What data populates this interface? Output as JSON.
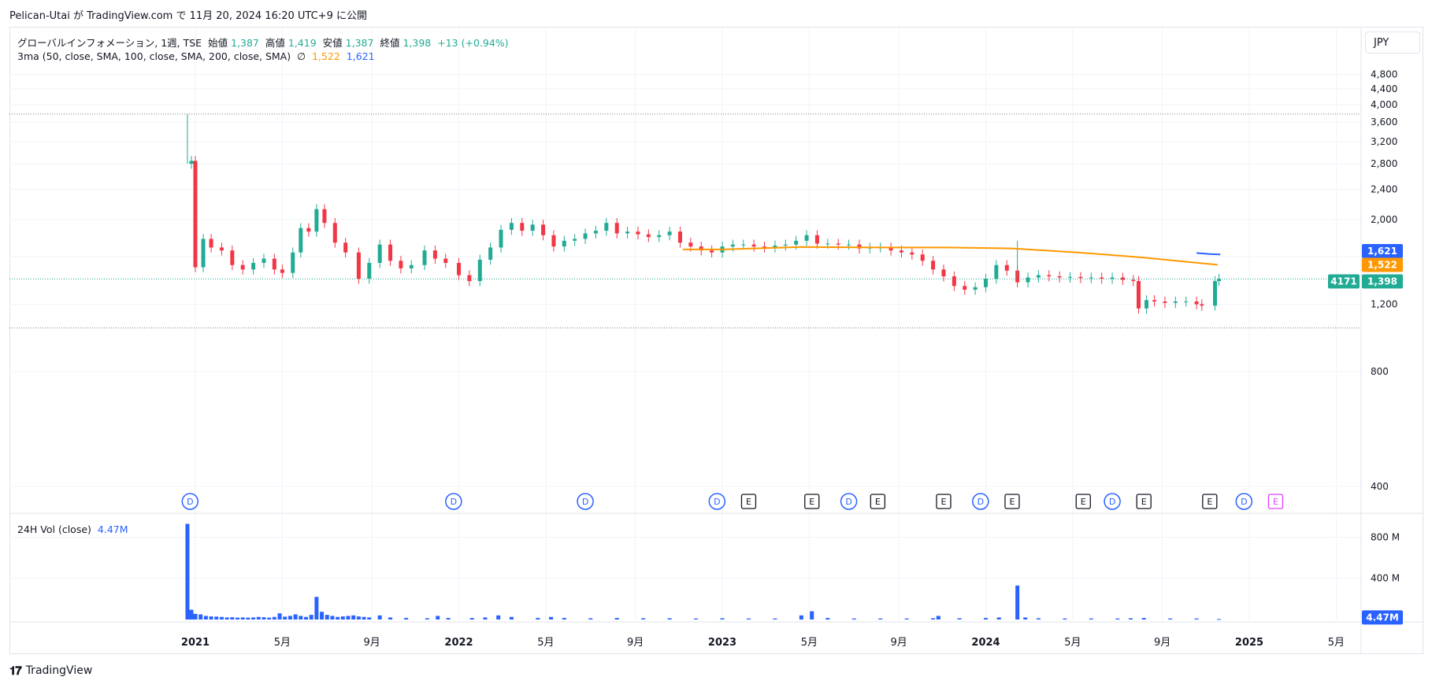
{
  "header": {
    "published": "Pelican-Utai が TradingView.com で 11月 20, 2024 16:20 UTC+9 に公開"
  },
  "legend": {
    "symbol": "グローバルインフォメーション, 1週, TSE",
    "open_label": "始値",
    "open": "1,387",
    "high_label": "高値",
    "high": "1,419",
    "low_label": "安値",
    "low": "1,387",
    "close_label": "終値",
    "close": "1,398",
    "change": "+13 (+0.94%)",
    "ma_label": "3ma (50, close, SMA, 100, close, SMA, 200, close, SMA)",
    "ma_na": "∅",
    "ma100": "1,522",
    "ma200": "1,621",
    "vol_label": "24H Vol (close)",
    "vol_value": "4.47M"
  },
  "currency": "JPY",
  "footer": {
    "brand": "TradingView"
  },
  "colors": {
    "up": "#22ab94",
    "down": "#f23645",
    "ma100": "#ff9800",
    "ma200": "#2962ff",
    "volume": "#2962ff",
    "ticker_bg": "#22ab94"
  },
  "chart_data": [
    {
      "type": "candlestick",
      "title": "グローバルインフォメーション, 1週, TSE",
      "timeframe": "1週",
      "price_axis": {
        "ticks": [
          400,
          800,
          1200,
          1600,
          2000,
          2400,
          2800,
          3200,
          3600,
          4000,
          4400,
          4800
        ],
        "tick_labels": [
          "400",
          "800",
          "1,200",
          "1,600",
          "2,000",
          "2,400",
          "2,800",
          "3,200",
          "3,600",
          "4,000",
          "4,400",
          "4,800"
        ],
        "ylim": [
          360,
          5000
        ]
      },
      "time_axis": {
        "labels": [
          {
            "text": "2021",
            "t": 2021.0,
            "bold": true
          },
          {
            "text": "5月",
            "t": 2021.33
          },
          {
            "text": "9月",
            "t": 2021.67
          },
          {
            "text": "2022",
            "t": 2022.0,
            "bold": true
          },
          {
            "text": "5月",
            "t": 2022.33
          },
          {
            "text": "9月",
            "t": 2022.67
          },
          {
            "text": "2023",
            "t": 2023.0,
            "bold": true
          },
          {
            "text": "5月",
            "t": 2023.33
          },
          {
            "text": "9月",
            "t": 2023.67
          },
          {
            "text": "2024",
            "t": 2024.0,
            "bold": true
          },
          {
            "text": "5月",
            "t": 2024.33
          },
          {
            "text": "9月",
            "t": 2024.67
          },
          {
            "text": "2025",
            "t": 2025.0,
            "bold": true
          },
          {
            "text": "5月",
            "t": 2025.33
          }
        ]
      },
      "reference_lines": [
        3780,
        1040,
        1398
      ],
      "last_price": {
        "ticker": "4171",
        "value": "1,398"
      },
      "ma_labels": [
        {
          "value": "1,621",
          "series": "ma200"
        },
        {
          "value": "1,522",
          "series": "ma100"
        }
      ],
      "price_path": [
        [
          2020.97,
          2800
        ],
        [
          2020.985,
          2850
        ],
        [
          2021.0,
          1500
        ],
        [
          2021.03,
          1780
        ],
        [
          2021.06,
          1690
        ],
        [
          2021.1,
          1660
        ],
        [
          2021.14,
          1520
        ],
        [
          2021.18,
          1480
        ],
        [
          2021.22,
          1540
        ],
        [
          2021.26,
          1580
        ],
        [
          2021.3,
          1480
        ],
        [
          2021.33,
          1450
        ],
        [
          2021.37,
          1640
        ],
        [
          2021.4,
          1900
        ],
        [
          2021.43,
          1860
        ],
        [
          2021.46,
          2130
        ],
        [
          2021.49,
          1960
        ],
        [
          2021.53,
          1740
        ],
        [
          2021.57,
          1640
        ],
        [
          2021.62,
          1400
        ],
        [
          2021.66,
          1540
        ],
        [
          2021.7,
          1720
        ],
        [
          2021.74,
          1560
        ],
        [
          2021.78,
          1490
        ],
        [
          2021.82,
          1520
        ],
        [
          2021.87,
          1660
        ],
        [
          2021.91,
          1580
        ],
        [
          2021.95,
          1540
        ],
        [
          2022.0,
          1430
        ],
        [
          2022.04,
          1380
        ],
        [
          2022.08,
          1570
        ],
        [
          2022.12,
          1690
        ],
        [
          2022.16,
          1880
        ],
        [
          2022.2,
          1960
        ],
        [
          2022.24,
          1870
        ],
        [
          2022.28,
          1940
        ],
        [
          2022.32,
          1820
        ],
        [
          2022.36,
          1700
        ],
        [
          2022.4,
          1760
        ],
        [
          2022.44,
          1780
        ],
        [
          2022.48,
          1840
        ],
        [
          2022.52,
          1870
        ],
        [
          2022.56,
          1960
        ],
        [
          2022.6,
          1840
        ],
        [
          2022.64,
          1860
        ],
        [
          2022.68,
          1830
        ],
        [
          2022.72,
          1800
        ],
        [
          2022.76,
          1820
        ],
        [
          2022.8,
          1860
        ],
        [
          2022.84,
          1740
        ],
        [
          2022.88,
          1700
        ],
        [
          2022.92,
          1660
        ],
        [
          2022.96,
          1640
        ],
        [
          2023.0,
          1700
        ],
        [
          2023.04,
          1720
        ],
        [
          2023.08,
          1720
        ],
        [
          2023.12,
          1700
        ],
        [
          2023.16,
          1690
        ],
        [
          2023.2,
          1710
        ],
        [
          2023.24,
          1720
        ],
        [
          2023.28,
          1760
        ],
        [
          2023.32,
          1820
        ],
        [
          2023.36,
          1730
        ],
        [
          2023.4,
          1730
        ],
        [
          2023.44,
          1720
        ],
        [
          2023.48,
          1720
        ],
        [
          2023.52,
          1680
        ],
        [
          2023.56,
          1690
        ],
        [
          2023.6,
          1690
        ],
        [
          2023.64,
          1660
        ],
        [
          2023.68,
          1640
        ],
        [
          2023.72,
          1620
        ],
        [
          2023.76,
          1560
        ],
        [
          2023.8,
          1480
        ],
        [
          2023.84,
          1420
        ],
        [
          2023.88,
          1340
        ],
        [
          2023.92,
          1310
        ],
        [
          2023.96,
          1330
        ],
        [
          2024.0,
          1400
        ],
        [
          2024.04,
          1520
        ],
        [
          2024.08,
          1470
        ],
        [
          2024.12,
          1370
        ],
        [
          2024.16,
          1410
        ],
        [
          2024.2,
          1430
        ],
        [
          2024.24,
          1420
        ],
        [
          2024.28,
          1410
        ],
        [
          2024.32,
          1415
        ],
        [
          2024.36,
          1405
        ],
        [
          2024.4,
          1410
        ],
        [
          2024.44,
          1400
        ],
        [
          2024.48,
          1410
        ],
        [
          2024.52,
          1390
        ],
        [
          2024.56,
          1380
        ],
        [
          2024.58,
          1170
        ],
        [
          2024.61,
          1230
        ],
        [
          2024.64,
          1220
        ],
        [
          2024.68,
          1210
        ],
        [
          2024.72,
          1220
        ],
        [
          2024.76,
          1220
        ],
        [
          2024.8,
          1200
        ],
        [
          2024.82,
          1190
        ],
        [
          2024.87,
          1380
        ],
        [
          2024.885,
          1398
        ]
      ],
      "ma100_path": [
        [
          2022.85,
          1670
        ],
        [
          2023.0,
          1670
        ],
        [
          2023.3,
          1695
        ],
        [
          2023.6,
          1690
        ],
        [
          2023.85,
          1690
        ],
        [
          2024.1,
          1680
        ],
        [
          2024.35,
          1640
        ],
        [
          2024.6,
          1590
        ],
        [
          2024.88,
          1522
        ]
      ],
      "ma200_path": [
        [
          2024.8,
          1635
        ],
        [
          2024.85,
          1625
        ],
        [
          2024.89,
          1621
        ]
      ],
      "dividend_events": [
        2020.98,
        2021.98,
        2022.48,
        2022.98,
        2023.48,
        2023.98,
        2024.48,
        2024.98
      ],
      "earnings_events": [
        2023.1,
        2023.34,
        2023.59,
        2023.84,
        2024.1,
        2024.37,
        2024.6,
        2024.85
      ],
      "upcoming_earnings": [
        2025.1
      ]
    },
    {
      "type": "bar",
      "title": "24H Vol (close)",
      "axis": {
        "ticks": [
          400,
          800
        ],
        "tick_labels": [
          "400 M",
          "800 M"
        ],
        "ylim": [
          0,
          1010
        ]
      },
      "last_value_label": "4.47M",
      "volume_M": [
        [
          2020.97,
          930
        ],
        [
          2020.985,
          95
        ],
        [
          2021.0,
          55
        ],
        [
          2021.02,
          50
        ],
        [
          2021.04,
          35
        ],
        [
          2021.06,
          30
        ],
        [
          2021.08,
          28
        ],
        [
          2021.1,
          25
        ],
        [
          2021.12,
          20
        ],
        [
          2021.14,
          22
        ],
        [
          2021.16,
          18
        ],
        [
          2021.18,
          20
        ],
        [
          2021.2,
          18
        ],
        [
          2021.22,
          20
        ],
        [
          2021.24,
          25
        ],
        [
          2021.26,
          22
        ],
        [
          2021.28,
          18
        ],
        [
          2021.3,
          25
        ],
        [
          2021.32,
          60
        ],
        [
          2021.34,
          28
        ],
        [
          2021.36,
          35
        ],
        [
          2021.38,
          50
        ],
        [
          2021.4,
          35
        ],
        [
          2021.42,
          25
        ],
        [
          2021.44,
          45
        ],
        [
          2021.46,
          220
        ],
        [
          2021.48,
          75
        ],
        [
          2021.5,
          45
        ],
        [
          2021.52,
          35
        ],
        [
          2021.54,
          25
        ],
        [
          2021.56,
          30
        ],
        [
          2021.58,
          35
        ],
        [
          2021.6,
          40
        ],
        [
          2021.62,
          30
        ],
        [
          2021.64,
          25
        ],
        [
          2021.66,
          20
        ],
        [
          2021.7,
          40
        ],
        [
          2021.74,
          20
        ],
        [
          2021.8,
          15
        ],
        [
          2021.88,
          12
        ],
        [
          2021.92,
          35
        ],
        [
          2021.96,
          15
        ],
        [
          2022.05,
          15
        ],
        [
          2022.1,
          20
        ],
        [
          2022.15,
          40
        ],
        [
          2022.2,
          25
        ],
        [
          2022.3,
          15
        ],
        [
          2022.35,
          25
        ],
        [
          2022.4,
          15
        ],
        [
          2022.5,
          12
        ],
        [
          2022.6,
          15
        ],
        [
          2022.7,
          12
        ],
        [
          2022.8,
          12
        ],
        [
          2022.9,
          10
        ],
        [
          2023.0,
          12
        ],
        [
          2023.1,
          10
        ],
        [
          2023.2,
          10
        ],
        [
          2023.3,
          40
        ],
        [
          2023.34,
          80
        ],
        [
          2023.4,
          15
        ],
        [
          2023.5,
          10
        ],
        [
          2023.6,
          10
        ],
        [
          2023.7,
          10
        ],
        [
          2023.8,
          12
        ],
        [
          2023.82,
          35
        ],
        [
          2023.9,
          12
        ],
        [
          2024.0,
          15
        ],
        [
          2024.05,
          20
        ],
        [
          2024.12,
          330
        ],
        [
          2024.15,
          20
        ],
        [
          2024.2,
          12
        ],
        [
          2024.3,
          10
        ],
        [
          2024.4,
          10
        ],
        [
          2024.5,
          10
        ],
        [
          2024.55,
          12
        ],
        [
          2024.6,
          15
        ],
        [
          2024.7,
          10
        ],
        [
          2024.8,
          10
        ],
        [
          2024.885,
          4.47
        ]
      ]
    }
  ]
}
